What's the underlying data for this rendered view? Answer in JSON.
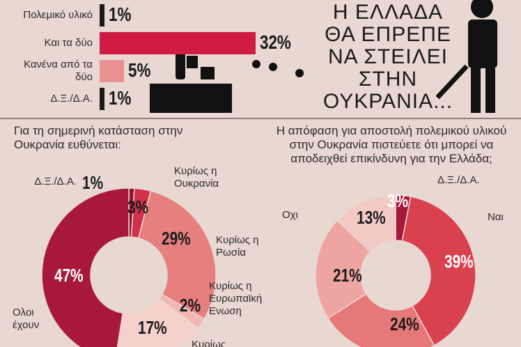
{
  "chart_data": [
    {
      "type": "bar",
      "title": "Η ΕΛΛΑΔΑ ΘΑ ΕΠΡΕΠΕ ΝΑ ΣΤΕΙΛΕΙ ΣΤΗΝ ΟΥΚΡΑΝΙΑ...",
      "categories": [
        "Πολεμικό υλικό",
        "Και τα δύο",
        "Κανένα από τα δύο",
        "Δ.Ξ./Δ.Α."
      ],
      "values": [
        1,
        32,
        5,
        1
      ],
      "value_labels": [
        "1%",
        "32%",
        "5%",
        "1%"
      ],
      "colors": [
        "#1a1a1a",
        "#d01c43",
        "#e8918f",
        "#1a1a1a"
      ]
    },
    {
      "type": "donut",
      "title": "Για τη σημερινή κατάσταση στην Ουκρανία ευθύνεται:",
      "categories": [
        "Δ.Ξ./Δ.Α.",
        "Κυρίως η Ουκρανία",
        "Κυρίως η Ρωσία",
        "Κυρίως η Ευρωπαϊκή Ενωση",
        "Κυρίως",
        "Ολοι έχουν"
      ],
      "values": [
        1,
        3,
        29,
        2,
        17,
        47
      ],
      "value_labels": [
        "1%",
        "3%",
        "29%",
        "2%",
        "17%",
        "47%"
      ],
      "colors": [
        "#8c1430",
        "#d3304b",
        "#e5807f",
        "#f2b7b2",
        "#f6d0cb",
        "#a8183b"
      ]
    },
    {
      "type": "donut",
      "title": "Η απόφαση για αποστολή πολεμικού υλικού στην Ουκρανία πιστεύετε ότι μπορεί να αποδειχθεί επικίνδυνη για την Ελλάδα;",
      "categories": [
        "Δ.Ξ./Δ.Α.",
        "Ναι",
        null,
        null,
        "Οχι"
      ],
      "values": [
        3,
        39,
        24,
        21,
        13
      ],
      "value_labels": [
        "3%",
        "39%",
        "24%",
        "21%",
        "13%"
      ],
      "colors": [
        "#a8183b",
        "#d9414f",
        "#e6787a",
        "#eea5a2",
        "#f3c9c3"
      ]
    }
  ]
}
